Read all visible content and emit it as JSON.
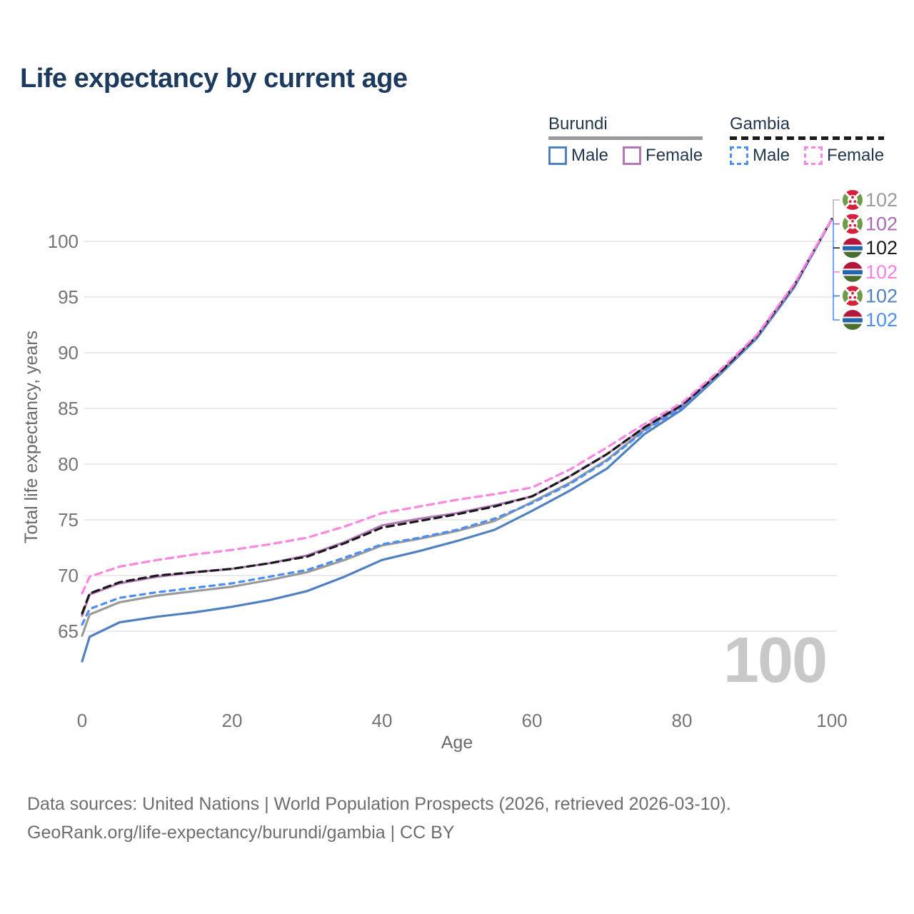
{
  "title": "Life expectancy by current age",
  "legend": {
    "position": "top-right",
    "groups": [
      {
        "label": "Burundi",
        "style": "solid",
        "underline_color": "#9b9b9b",
        "items": [
          {
            "label": "Male",
            "color": "#4f81c2",
            "dashed": false
          },
          {
            "label": "Female",
            "color": "#b279b8",
            "dashed": false
          }
        ]
      },
      {
        "label": "Gambia",
        "style": "dashed",
        "underline_color": "#1a1a1a",
        "items": [
          {
            "label": "Male",
            "color": "#4c8df6",
            "dashed": true
          },
          {
            "label": "Female",
            "color": "#ff85e2",
            "dashed": true
          }
        ]
      }
    ]
  },
  "chart_data": {
    "type": "line",
    "title": "Life expectancy by current age",
    "xlabel": "Age",
    "ylabel": "Total life expectancy, years",
    "xticks": [
      0,
      20,
      40,
      60,
      80,
      100
    ],
    "yticks": [
      65,
      70,
      75,
      80,
      85,
      90,
      95,
      100
    ],
    "xlim": [
      0,
      100
    ],
    "ylim": [
      61.5,
      103
    ],
    "grid": "horizontal-only",
    "watermark": "100",
    "x": [
      0,
      1,
      5,
      10,
      15,
      20,
      25,
      30,
      35,
      40,
      45,
      50,
      55,
      60,
      65,
      70,
      75,
      80,
      85,
      90,
      95,
      100
    ],
    "series": [
      {
        "name": "Burundi Male",
        "color": "#4f81c2",
        "dash": null,
        "values": [
          62.3,
          64.5,
          65.8,
          66.3,
          66.7,
          67.2,
          67.8,
          68.6,
          69.9,
          71.4,
          72.2,
          73.1,
          74.1,
          75.8,
          77.6,
          79.6,
          82.7,
          84.9,
          88.0,
          91.3,
          95.9,
          102
        ]
      },
      {
        "name": "Burundi Both Sexes",
        "color": "#9b9b9b",
        "dash": null,
        "values": [
          64.6,
          66.5,
          67.6,
          68.2,
          68.6,
          69.0,
          69.6,
          70.3,
          71.4,
          72.7,
          73.3,
          74.0,
          74.9,
          76.6,
          78.3,
          80.4,
          83.1,
          85.2,
          88.1,
          91.4,
          96.0,
          102
        ]
      },
      {
        "name": "Gambia Male",
        "color": "#4c8df6",
        "dash": "7 7",
        "values": [
          65.6,
          67.0,
          68.0,
          68.5,
          68.9,
          69.3,
          69.9,
          70.5,
          71.6,
          72.8,
          73.4,
          74.1,
          75.1,
          76.5,
          78.2,
          80.3,
          83.0,
          85.1,
          88.1,
          91.4,
          96.0,
          102
        ]
      },
      {
        "name": "Burundi Female",
        "color": "#b279b8",
        "dash": null,
        "values": [
          66.4,
          68.3,
          69.3,
          69.9,
          70.3,
          70.6,
          71.1,
          71.8,
          73.0,
          74.5,
          75.1,
          75.6,
          76.3,
          77.1,
          78.9,
          80.9,
          83.3,
          85.3,
          88.2,
          91.5,
          96.1,
          102
        ]
      },
      {
        "name": "Gambia Both Sexes",
        "color": "#1a1a1a",
        "dash": "10 7",
        "values": [
          66.6,
          68.4,
          69.4,
          70.0,
          70.3,
          70.6,
          71.1,
          71.7,
          72.9,
          74.3,
          74.9,
          75.5,
          76.2,
          77.1,
          78.9,
          80.9,
          83.3,
          85.3,
          88.2,
          91.5,
          96.1,
          102
        ]
      },
      {
        "name": "Gambia Female",
        "color": "#ff85e2",
        "dash": "10 7",
        "values": [
          68.4,
          69.9,
          70.8,
          71.4,
          71.9,
          72.3,
          72.8,
          73.4,
          74.4,
          75.6,
          76.2,
          76.8,
          77.3,
          77.9,
          79.5,
          81.5,
          83.6,
          85.5,
          88.4,
          91.6,
          96.2,
          102
        ]
      }
    ],
    "end_labels": [
      {
        "value": "102",
        "flag": "burundi",
        "color": "#9b9b9b"
      },
      {
        "value": "102",
        "flag": "burundi",
        "color": "#a96ab1"
      },
      {
        "value": "102",
        "flag": "gambia",
        "color": "#1a1a1a"
      },
      {
        "value": "102",
        "flag": "gambia",
        "color": "#ff7ee3"
      },
      {
        "value": "102",
        "flag": "burundi",
        "color": "#4f81c2"
      },
      {
        "value": "102",
        "flag": "gambia",
        "color": "#4c8df6"
      }
    ]
  },
  "footer": {
    "line1": "Data sources: United Nations | World Population Prospects (2026, retrieved 2026-03-10).",
    "line2": "GeoRank.org/life-expectancy/burundi/gambia | CC BY"
  }
}
